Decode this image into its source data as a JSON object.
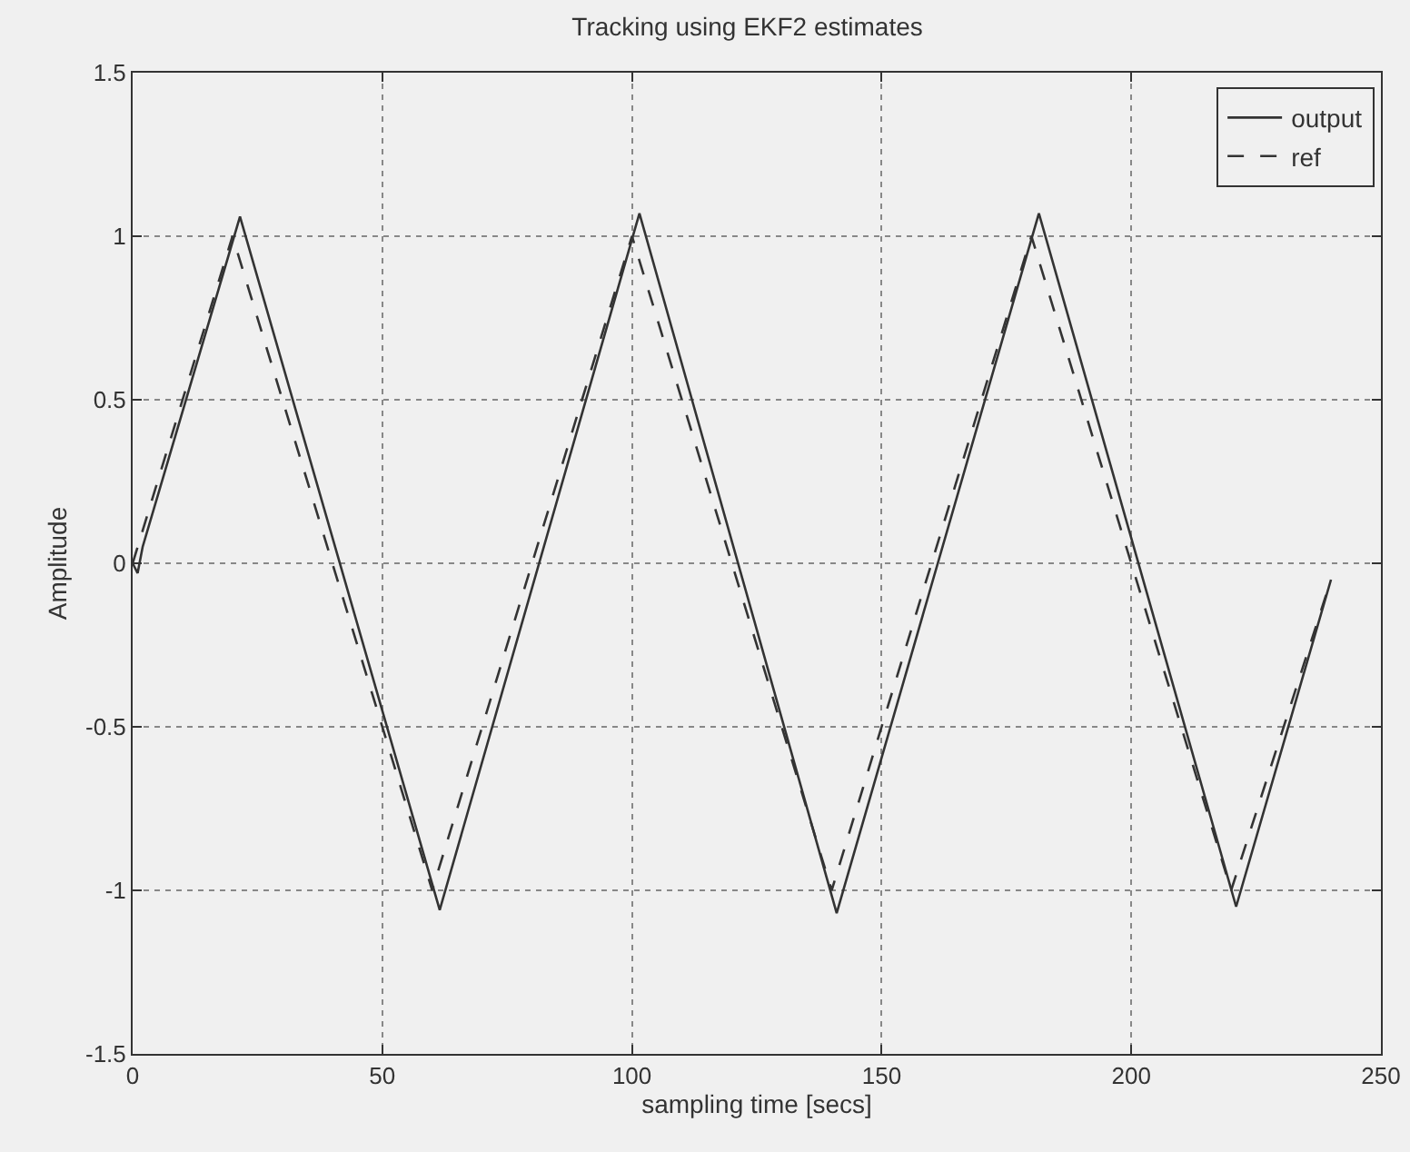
{
  "chart_data": {
    "type": "line",
    "title": "Tracking using EKF2 estimates",
    "xlabel": "sampling time [secs]",
    "ylabel": "Amplitude",
    "series": [
      {
        "name": "output",
        "color": "#333333",
        "line_style": "solid",
        "x": [
          0,
          1,
          2,
          21.5,
          61.5,
          101.5,
          141,
          181.5,
          221,
          240
        ],
        "values": [
          0,
          -0.03,
          0.05,
          1.06,
          -1.06,
          1.07,
          -1.07,
          1.07,
          -1.05,
          -0.05
        ]
      },
      {
        "name": "ref",
        "color": "#333333",
        "line_style": "dashed",
        "x": [
          0,
          20,
          60,
          100,
          140,
          180,
          220,
          240
        ],
        "values": [
          0,
          1,
          -1,
          1,
          -1,
          1,
          -1,
          -0.05
        ]
      }
    ],
    "xlim": [
      0,
      250
    ],
    "xticks": [
      0,
      50,
      100,
      150,
      200,
      250
    ],
    "ylim": [
      -1.5,
      1.5
    ],
    "yticks": [
      {
        "value": -1.5,
        "label": "-1.5"
      },
      {
        "value": -1,
        "label": "-1"
      },
      {
        "value": -0.5,
        "label": "-0.5"
      },
      0,
      0.5,
      1,
      1.5
    ],
    "grid": true,
    "legend": "top right"
  }
}
